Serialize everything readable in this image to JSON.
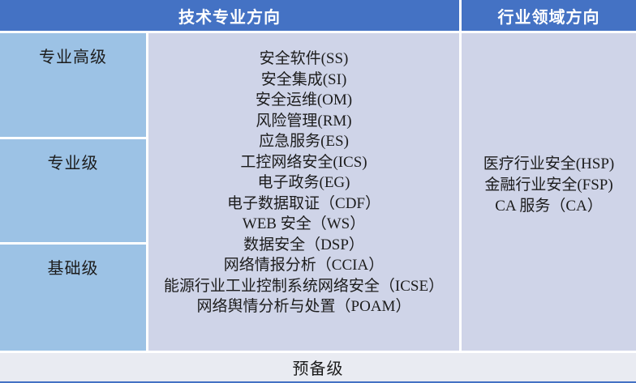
{
  "header": {
    "tech_column_label": "技术专业方向",
    "industry_column_label": "行业领域方向"
  },
  "levels": [
    {
      "label": "专业高级"
    },
    {
      "label": "专业级"
    },
    {
      "label": "基础级"
    }
  ],
  "tech_items": [
    "安全软件(SS)",
    "安全集成(SI)",
    "安全运维(OM)",
    "风险管理(RM)",
    "应急服务(ES)",
    "工控网络安全(ICS)",
    "电子政务(EG)",
    "电子数据取证（CDF）",
    "WEB 安全（WS）",
    "数据安全（DSP）",
    "网络情报分析（CCIA）",
    "能源行业工业控制系统网络安全（ICSE）",
    "网络舆情分析与处置（POAM）"
  ],
  "industry_items": [
    "医疗行业安全(HSP)",
    "金融行业安全(FSP)",
    "CA 服务（CA）"
  ],
  "footer": {
    "label": "预备级"
  },
  "colors": {
    "header_blue": "#4472c4",
    "level_cell_blue": "#9cc2e5",
    "body_cell_lavender": "#cfd4e8",
    "footer_strip": "#e9ebf2",
    "bottom_border": "#4472c4",
    "header_text": "#ffffff",
    "body_text": "#1c1c1c"
  }
}
